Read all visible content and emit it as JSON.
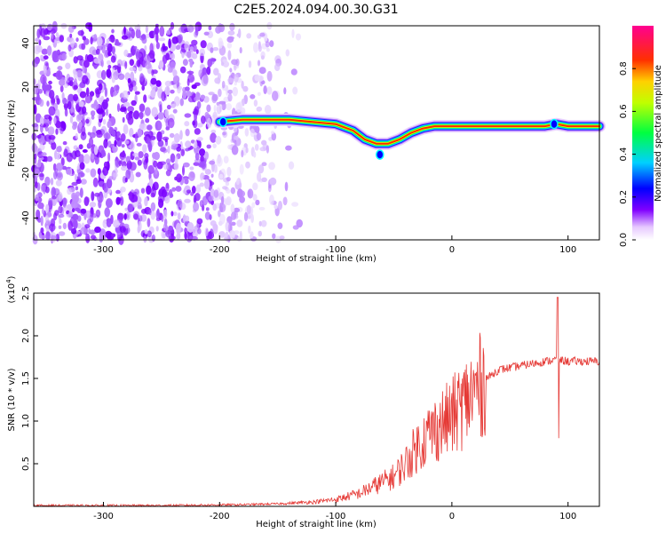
{
  "title": "C2E5.2024.094.00.30.G31",
  "colors": {
    "snr_line": "#e53935",
    "axis": "#000000"
  },
  "chart_data": [
    {
      "type": "heatmap",
      "xlabel": "Height of straight line (km)",
      "ylabel": "Frequency (Hz)",
      "xlim": [
        -360,
        127
      ],
      "ylim": [
        -50,
        48
      ],
      "x_ticks": [
        -300,
        -200,
        -100,
        0,
        100
      ],
      "y_ticks": [
        -40,
        -20,
        0,
        20,
        40
      ],
      "colorbar": {
        "label": "Normalized spectral amplitude",
        "range": [
          0.0,
          1.0
        ],
        "ticks": [
          0.0,
          0.2,
          0.4,
          0.6,
          0.8
        ],
        "colormap": "white-violet-blue-cyan-green-yellow-red-magenta"
      },
      "ridge": {
        "x": [
          -200,
          -180,
          -160,
          -140,
          -120,
          -100,
          -85,
          -75,
          -65,
          -55,
          -45,
          -35,
          -25,
          -15,
          0,
          20,
          40,
          60,
          80,
          90,
          100,
          127
        ],
        "y": [
          4,
          5,
          5,
          5,
          4,
          3,
          0,
          -4,
          -6,
          -6,
          -4,
          -1,
          1,
          2,
          2,
          2,
          2,
          2,
          2,
          3,
          2,
          2
        ]
      },
      "noise_region_x": [
        -360,
        -130
      ]
    },
    {
      "type": "line",
      "xlabel": "Height of straight line (km)",
      "ylabel": "SNR (10 * v/v)",
      "y_multiplier": "(x10",
      "y_multiplier_exp": "4",
      "y_multiplier_close": ")",
      "xlim": [
        -360,
        127
      ],
      "ylim": [
        0,
        2.5
      ],
      "x_ticks": [
        -300,
        -200,
        -100,
        0,
        100
      ],
      "y_ticks": [
        0.5,
        1.0,
        1.5,
        2.0,
        2.5
      ],
      "envelope": {
        "x": [
          -360,
          -250,
          -180,
          -150,
          -120,
          -100,
          -80,
          -65,
          -50,
          -40,
          -30,
          -20,
          -10,
          0,
          10,
          20,
          30,
          40,
          60,
          80,
          90,
          100,
          127
        ],
        "y": [
          0.01,
          0.01,
          0.02,
          0.03,
          0.05,
          0.08,
          0.15,
          0.25,
          0.35,
          0.5,
          0.7,
          0.85,
          0.95,
          1.05,
          1.2,
          1.35,
          1.5,
          1.6,
          1.65,
          1.7,
          1.72,
          1.7,
          1.7
        ]
      },
      "spike": {
        "x": 91,
        "max": 2.45,
        "min": 0.8
      }
    }
  ]
}
